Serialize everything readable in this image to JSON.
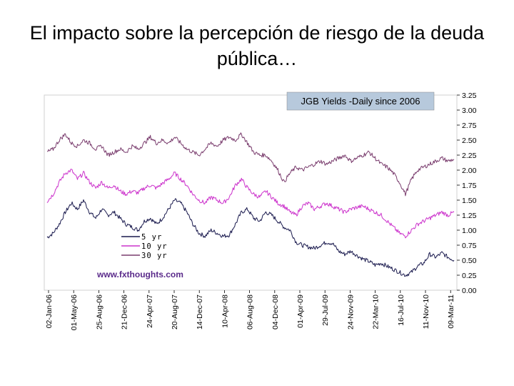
{
  "slide": {
    "title": "El impacto sobre la percepción de riesgo de la deuda pública…"
  },
  "colors": {
    "yr5": "#1a1a4e",
    "yr10": "#cc33cc",
    "yr30": "#7a3d6e",
    "title_box": "#b7c9dc",
    "watermark": "#5a2a8a"
  },
  "chart_data": {
    "type": "line",
    "title": "JGB Yields -Daily since 2006",
    "watermark": "www.fxthoughts.com",
    "xlabel": "",
    "ylabel": "",
    "ylim": [
      0,
      3.25
    ],
    "y_ticks": [
      "3.25",
      "3.00",
      "2.75",
      "2.50",
      "2.25",
      "2.00",
      "1.75",
      "1.50",
      "1.25",
      "1.00",
      "0.75",
      "0.50",
      "0.25",
      "0.00"
    ],
    "y_tick_values": [
      3.25,
      3.0,
      2.75,
      2.5,
      2.25,
      2.0,
      1.75,
      1.5,
      1.25,
      1.0,
      0.75,
      0.5,
      0.25,
      0.0
    ],
    "x_ticks": [
      "02-Jan-06",
      "01-May-06",
      "25-Aug-06",
      "21-Dec-06",
      "24-Apr-07",
      "20-Aug-07",
      "14-Dec-07",
      "10-Apr-08",
      "06-Aug-08",
      "04-Dec-08",
      "01-Apr-09",
      "29-Jul-09",
      "24-Nov-09",
      "22-Mar-10",
      "16-Jul-10",
      "11-Nov-10",
      "09-Mar-11"
    ],
    "legend": [
      {
        "key": "yr5",
        "label": "5 yr"
      },
      {
        "key": "yr10",
        "label": "10 yr"
      },
      {
        "key": "yr30",
        "label": "30 yr"
      }
    ],
    "series": [
      {
        "name": "5 yr",
        "key": "yr5",
        "values": [
          0.88,
          0.95,
          1.1,
          1.3,
          1.45,
          1.35,
          1.5,
          1.3,
          1.2,
          1.35,
          1.25,
          1.3,
          1.2,
          1.1,
          1.05,
          1.0,
          1.15,
          1.2,
          1.1,
          1.2,
          1.35,
          1.5,
          1.45,
          1.3,
          1.1,
          0.95,
          0.9,
          1.0,
          0.95,
          0.9,
          0.92,
          1.1,
          1.3,
          1.35,
          1.2,
          1.15,
          1.3,
          1.25,
          1.15,
          1.05,
          1.0,
          0.8,
          0.75,
          0.72,
          0.7,
          0.75,
          0.8,
          0.78,
          0.65,
          0.6,
          0.65,
          0.58,
          0.52,
          0.48,
          0.42,
          0.45,
          0.4,
          0.35,
          0.3,
          0.25,
          0.3,
          0.4,
          0.45,
          0.6,
          0.55,
          0.62,
          0.55,
          0.5
        ]
      },
      {
        "name": "10 yr",
        "key": "yr10",
        "values": [
          1.48,
          1.6,
          1.8,
          1.95,
          2.0,
          1.85,
          1.95,
          1.8,
          1.7,
          1.8,
          1.7,
          1.75,
          1.65,
          1.6,
          1.65,
          1.62,
          1.7,
          1.75,
          1.7,
          1.78,
          1.85,
          1.95,
          1.85,
          1.75,
          1.6,
          1.5,
          1.45,
          1.55,
          1.5,
          1.45,
          1.55,
          1.75,
          1.85,
          1.7,
          1.6,
          1.55,
          1.65,
          1.55,
          1.45,
          1.4,
          1.3,
          1.25,
          1.4,
          1.45,
          1.35,
          1.4,
          1.45,
          1.4,
          1.35,
          1.3,
          1.35,
          1.38,
          1.4,
          1.35,
          1.3,
          1.25,
          1.15,
          1.05,
          0.95,
          0.9,
          1.0,
          1.1,
          1.15,
          1.2,
          1.25,
          1.3,
          1.25,
          1.3
        ]
      },
      {
        "name": "30 yr",
        "key": "yr30",
        "values": [
          2.3,
          2.35,
          2.5,
          2.6,
          2.45,
          2.4,
          2.5,
          2.45,
          2.35,
          2.4,
          2.25,
          2.3,
          2.35,
          2.3,
          2.4,
          2.35,
          2.45,
          2.55,
          2.45,
          2.5,
          2.45,
          2.55,
          2.45,
          2.35,
          2.3,
          2.25,
          2.35,
          2.45,
          2.4,
          2.5,
          2.55,
          2.5,
          2.6,
          2.45,
          2.3,
          2.25,
          2.25,
          2.15,
          2.0,
          1.8,
          1.95,
          2.05,
          2.0,
          2.05,
          2.1,
          2.15,
          2.1,
          2.15,
          2.2,
          2.25,
          2.15,
          2.2,
          2.25,
          2.3,
          2.2,
          2.1,
          2.05,
          1.95,
          1.8,
          1.6,
          1.85,
          2.0,
          2.05,
          2.1,
          2.15,
          2.2,
          2.15,
          2.18
        ]
      }
    ]
  }
}
